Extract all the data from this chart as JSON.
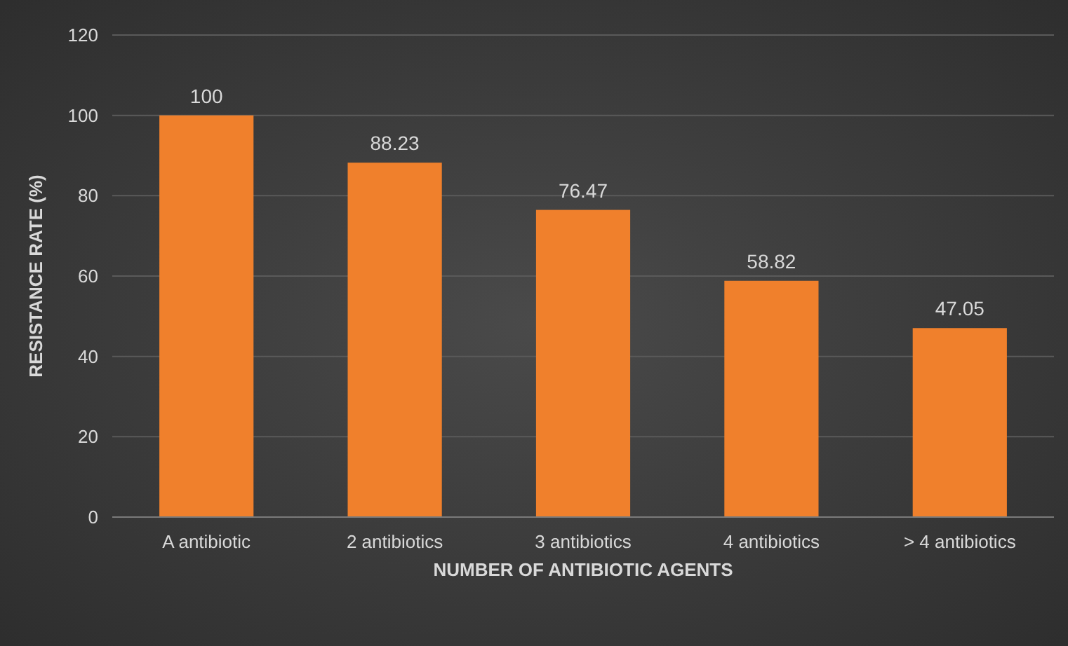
{
  "chart_data": {
    "type": "bar",
    "xlabel": "NUMBER OF ANTIBIOTIC AGENTS",
    "ylabel": "RESISTANCE RATE (%)",
    "categories": [
      "A antibiotic",
      "2 antibiotics",
      "3 antibiotics",
      "4 antibiotics",
      "> 4 antibiotics"
    ],
    "values": [
      100,
      88.23,
      76.47,
      58.82,
      47.05
    ],
    "color": "#f0802c",
    "ylim": [
      0,
      120
    ],
    "yticks": [
      0,
      20,
      40,
      60,
      80,
      100,
      120
    ],
    "grid": "y",
    "data_labels": true
  }
}
